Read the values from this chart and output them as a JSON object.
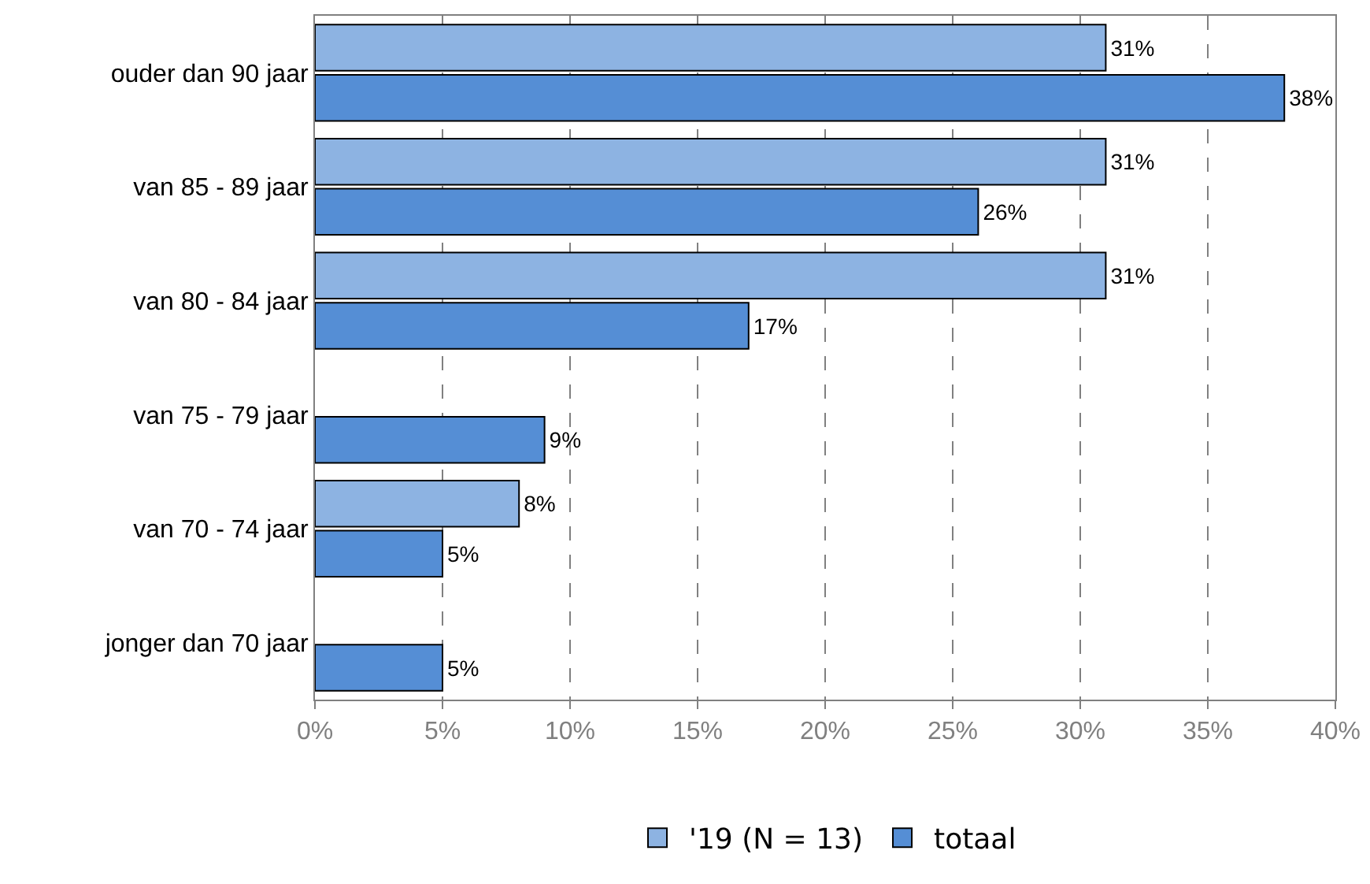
{
  "chart_data": {
    "type": "bar",
    "orientation": "horizontal",
    "categories": [
      "ouder dan 90 jaar",
      "van 85 - 89 jaar",
      "van 80 - 84 jaar",
      "van 75 - 79 jaar",
      "van 70 - 74 jaar",
      "jonger dan 70 jaar"
    ],
    "series": [
      {
        "name": "'19 (N = 13)",
        "color": "#8db3e2",
        "values": [
          31,
          31,
          31,
          null,
          8,
          null
        ],
        "value_labels": [
          "31%",
          "31%",
          "31%",
          null,
          "8%",
          null
        ]
      },
      {
        "name": "totaal",
        "color": "#558ed5",
        "values": [
          38,
          26,
          17,
          9,
          5,
          5
        ],
        "value_labels": [
          "38%",
          "26%",
          "17%",
          "9%",
          "5%",
          "5%"
        ]
      }
    ],
    "xlim": [
      0,
      40
    ],
    "xticks": [
      {
        "value": 0,
        "label": "0%"
      },
      {
        "value": 5,
        "label": "5%"
      },
      {
        "value": 10,
        "label": "10%"
      },
      {
        "value": 15,
        "label": "15%"
      },
      {
        "value": 20,
        "label": "20%"
      },
      {
        "value": 25,
        "label": "25%"
      },
      {
        "value": 30,
        "label": "30%"
      },
      {
        "value": 35,
        "label": "35%"
      },
      {
        "value": 40,
        "label": "40%"
      }
    ],
    "grid": "x",
    "legend": "bottom"
  }
}
